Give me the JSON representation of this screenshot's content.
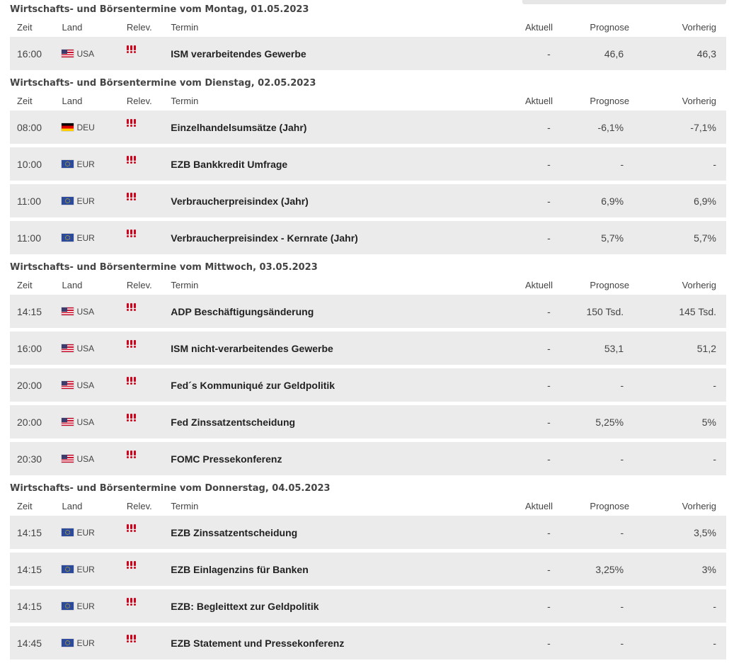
{
  "headers": {
    "time": "Zeit",
    "country": "Land",
    "relevance": "Relev.",
    "event": "Termin",
    "actual": "Aktuell",
    "forecast": "Prognose",
    "previous": "Vorherig"
  },
  "colors": {
    "row_background": "#ebebeb",
    "relevance_accent": "#d0021b"
  },
  "days": [
    {
      "title": "Wirtschafts- und Börsentermine vom Montag, 01.05.2023",
      "events": [
        {
          "time": "16:00",
          "flag": "usa-flag-icon",
          "country": "USA",
          "relevance": 3,
          "event": "ISM verarbeitendes Gewerbe",
          "actual": "-",
          "forecast": "46,6",
          "previous": "46,3"
        }
      ]
    },
    {
      "title": "Wirtschafts- und Börsentermine vom Dienstag, 02.05.2023",
      "events": [
        {
          "time": "08:00",
          "flag": "deu-flag-icon",
          "country": "DEU",
          "relevance": 3,
          "event": "Einzelhandelsumsätze (Jahr)",
          "actual": "-",
          "forecast": "-6,1%",
          "previous": "-7,1%"
        },
        {
          "time": "10:00",
          "flag": "eur-flag-icon",
          "country": "EUR",
          "relevance": 3,
          "event": "EZB Bankkredit Umfrage",
          "actual": "-",
          "forecast": "-",
          "previous": "-"
        },
        {
          "time": "11:00",
          "flag": "eur-flag-icon",
          "country": "EUR",
          "relevance": 3,
          "event": "Verbraucherpreisindex (Jahr)",
          "actual": "-",
          "forecast": "6,9%",
          "previous": "6,9%"
        },
        {
          "time": "11:00",
          "flag": "eur-flag-icon",
          "country": "EUR",
          "relevance": 3,
          "event": "Verbraucherpreisindex - Kernrate (Jahr)",
          "actual": "-",
          "forecast": "5,7%",
          "previous": "5,7%"
        }
      ]
    },
    {
      "title": "Wirtschafts- und Börsentermine vom Mittwoch, 03.05.2023",
      "events": [
        {
          "time": "14:15",
          "flag": "usa-flag-icon",
          "country": "USA",
          "relevance": 3,
          "event": "ADP Beschäftigungsänderung",
          "actual": "-",
          "forecast": "150 Tsd.",
          "previous": "145 Tsd."
        },
        {
          "time": "16:00",
          "flag": "usa-flag-icon",
          "country": "USA",
          "relevance": 3,
          "event": "ISM nicht-verarbeitendes Gewerbe",
          "actual": "-",
          "forecast": "53,1",
          "previous": "51,2"
        },
        {
          "time": "20:00",
          "flag": "usa-flag-icon",
          "country": "USA",
          "relevance": 3,
          "event": "Fed´s Kommuniqué zur Geldpolitik",
          "actual": "-",
          "forecast": "-",
          "previous": "-"
        },
        {
          "time": "20:00",
          "flag": "usa-flag-icon",
          "country": "USA",
          "relevance": 3,
          "event": "Fed Zinssatzentscheidung",
          "actual": "-",
          "forecast": "5,25%",
          "previous": "5%"
        },
        {
          "time": "20:30",
          "flag": "usa-flag-icon",
          "country": "USA",
          "relevance": 3,
          "event": "FOMC Pressekonferenz",
          "actual": "-",
          "forecast": "-",
          "previous": "-"
        }
      ]
    },
    {
      "title": "Wirtschafts- und Börsentermine vom Donnerstag, 04.05.2023",
      "events": [
        {
          "time": "14:15",
          "flag": "eur-flag-icon",
          "country": "EUR",
          "relevance": 3,
          "event": "EZB Zinssatzentscheidung",
          "actual": "-",
          "forecast": "-",
          "previous": "3,5%"
        },
        {
          "time": "14:15",
          "flag": "eur-flag-icon",
          "country": "EUR",
          "relevance": 3,
          "event": "EZB Einlagenzins für Banken",
          "actual": "-",
          "forecast": "3,25%",
          "previous": "3%"
        },
        {
          "time": "14:15",
          "flag": "eur-flag-icon",
          "country": "EUR",
          "relevance": 3,
          "event": "EZB: Begleittext zur Geldpolitik",
          "actual": "-",
          "forecast": "-",
          "previous": "-"
        },
        {
          "time": "14:45",
          "flag": "eur-flag-icon",
          "country": "EUR",
          "relevance": 3,
          "event": "EZB Statement und Pressekonferenz",
          "actual": "-",
          "forecast": "-",
          "previous": "-"
        }
      ]
    }
  ]
}
